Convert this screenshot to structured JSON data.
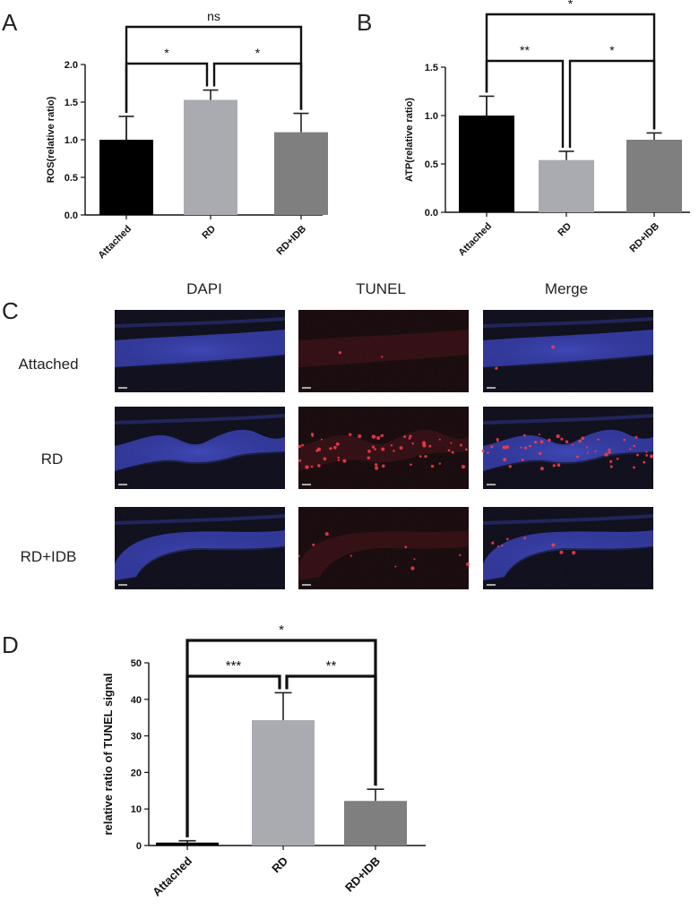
{
  "panels": {
    "A": "A",
    "B": "B",
    "C": "C",
    "D": "D"
  },
  "chart_data": [
    {
      "id": "A",
      "type": "bar",
      "categories": [
        "Attached",
        "RD",
        "RD+IDB"
      ],
      "values": [
        1.0,
        1.53,
        1.1
      ],
      "errors": [
        0.31,
        0.13,
        0.25
      ],
      "colors": [
        "#000000",
        "#a9abb1",
        "#7f7f7f"
      ],
      "ylabel": "ROS(relative ratio)",
      "ylim": [
        0,
        2.0
      ],
      "yticks": [
        "0.0",
        "0.5",
        "1.0",
        "1.5",
        "2.0"
      ],
      "significance": [
        {
          "from": 0,
          "to": 1,
          "label": "*"
        },
        {
          "from": 1,
          "to": 2,
          "label": "*"
        },
        {
          "from": 0,
          "to": 2,
          "label": "ns"
        }
      ]
    },
    {
      "id": "B",
      "type": "bar",
      "categories": [
        "Attached",
        "RD",
        "RD+IDB"
      ],
      "values": [
        1.0,
        0.54,
        0.75
      ],
      "errors": [
        0.2,
        0.09,
        0.07
      ],
      "colors": [
        "#000000",
        "#a9abb1",
        "#7f7f7f"
      ],
      "ylabel": "ATP(relative ratio)",
      "ylim": [
        0,
        1.5
      ],
      "yticks": [
        "0.0",
        "0.5",
        "1.0",
        "1.5"
      ],
      "significance": [
        {
          "from": 0,
          "to": 1,
          "label": "**"
        },
        {
          "from": 1,
          "to": 2,
          "label": "*"
        },
        {
          "from": 0,
          "to": 2,
          "label": "*"
        }
      ]
    },
    {
      "id": "D",
      "type": "bar",
      "categories": [
        "Attached",
        "RD",
        "RD+IDB"
      ],
      "values": [
        0.8,
        34.3,
        12.2
      ],
      "errors": [
        0.5,
        7.5,
        3.2
      ],
      "colors": [
        "#000000",
        "#a9abb1",
        "#7f7f7f"
      ],
      "ylabel": "relative ratio of TUNEL signal",
      "ylim": [
        0,
        50
      ],
      "yticks": [
        "0",
        "10",
        "20",
        "30",
        "40",
        "50"
      ],
      "significance": [
        {
          "from": 0,
          "to": 1,
          "label": "***"
        },
        {
          "from": 1,
          "to": 2,
          "label": "**"
        },
        {
          "from": 0,
          "to": 2,
          "label": "*"
        }
      ]
    }
  ],
  "micrographs": {
    "columns": [
      "DAPI",
      "TUNEL",
      "Merge"
    ],
    "rows": [
      "Attached",
      "RD",
      "RD+IDB"
    ]
  }
}
